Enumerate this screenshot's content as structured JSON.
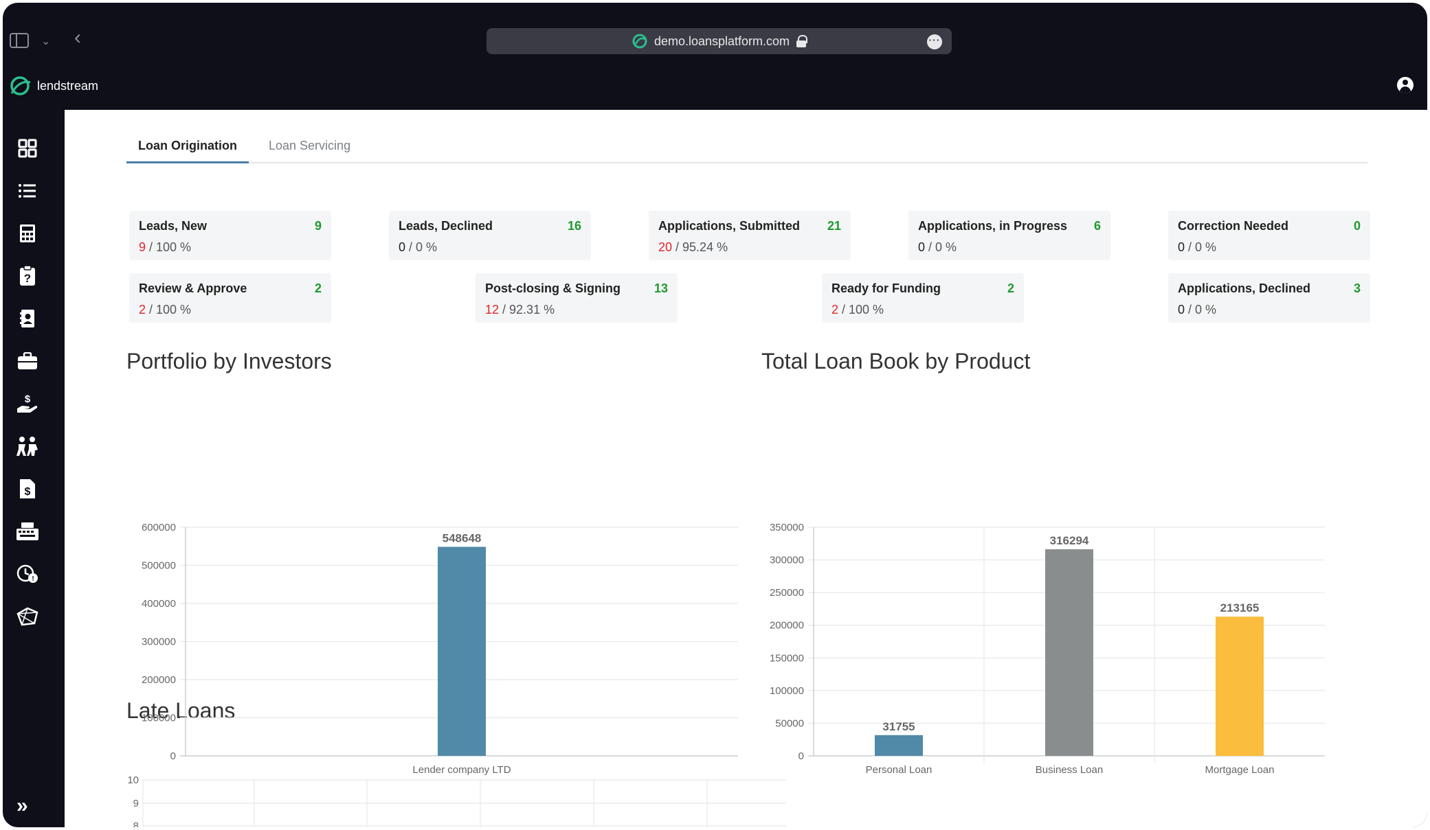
{
  "browser": {
    "url": "demo.loansplatform.com"
  },
  "app": {
    "logo_text": "lendstream"
  },
  "nav_icons": [
    "dashboard-grid-icon",
    "list-icon",
    "calculator-icon",
    "help-clipboard-icon",
    "contacts-book-icon",
    "briefcase-icon",
    "hand-money-icon",
    "people-icon",
    "invoice-dollar-icon",
    "terminal-icon",
    "history-clock-icon",
    "network-icon"
  ],
  "tabs": [
    {
      "label": "Loan Origination",
      "active": true
    },
    {
      "label": "Loan Servicing",
      "active": false
    }
  ],
  "cards": [
    {
      "title": "Leads, New",
      "count": "9",
      "first": "9",
      "rest": " / 100 %",
      "red": true
    },
    {
      "title": "Leads, Declined",
      "count": "16",
      "first": "0",
      "rest": " / 0 %",
      "red": false
    },
    {
      "title": "Applications, Submitted",
      "count": "21",
      "first": "20",
      "rest": " / 95.24 %",
      "red": true
    },
    {
      "title": "Applications, in Progress",
      "count": "6",
      "first": "0",
      "rest": " / 0 %",
      "red": false
    },
    {
      "title": "Correction Needed",
      "count": "0",
      "first": "0",
      "rest": " / 0 %",
      "red": false
    },
    {
      "title": "Review & Approve",
      "count": "2",
      "first": "2",
      "rest": " / 100 %",
      "red": true
    },
    {
      "title": "Post-closing & Signing",
      "count": "13",
      "first": "12",
      "rest": " / 92.31 %",
      "red": true
    },
    {
      "title": "Ready for Funding",
      "count": "2",
      "first": "2",
      "rest": " / 100 %",
      "red": true
    },
    {
      "title": "Applications, Declined",
      "count": "3",
      "first": "0",
      "rest": " / 0 %",
      "red": false
    }
  ],
  "sections": {
    "portfolio_title": "Portfolio by Investors",
    "loanbook_title": "Total Loan Book by Product",
    "late_title": "Late Loans"
  },
  "chart_data": [
    {
      "type": "bar",
      "title": "Portfolio by Investors",
      "categories": [
        "Lender company LTD"
      ],
      "values": [
        548648
      ],
      "ylim": [
        0,
        600000
      ],
      "yticks": [
        0,
        100000,
        200000,
        300000,
        400000,
        500000,
        600000
      ],
      "colors": [
        "#5189a8"
      ],
      "grid": true
    },
    {
      "type": "bar",
      "title": "Total Loan Book by Product",
      "categories": [
        "Personal Loan",
        "Business Loan",
        "Mortgage Loan"
      ],
      "values": [
        31755,
        316294,
        213165
      ],
      "ylim": [
        0,
        350000
      ],
      "yticks": [
        0,
        50000,
        100000,
        150000,
        200000,
        250000,
        300000,
        350000
      ],
      "colors": [
        "#5189a8",
        "#8a8d8e",
        "#fbbd3d"
      ],
      "grid": true
    },
    {
      "type": "line",
      "title": "Late Loans",
      "ylim": [
        0,
        10
      ],
      "yticks": [
        8,
        9,
        10
      ],
      "grid": true
    }
  ]
}
